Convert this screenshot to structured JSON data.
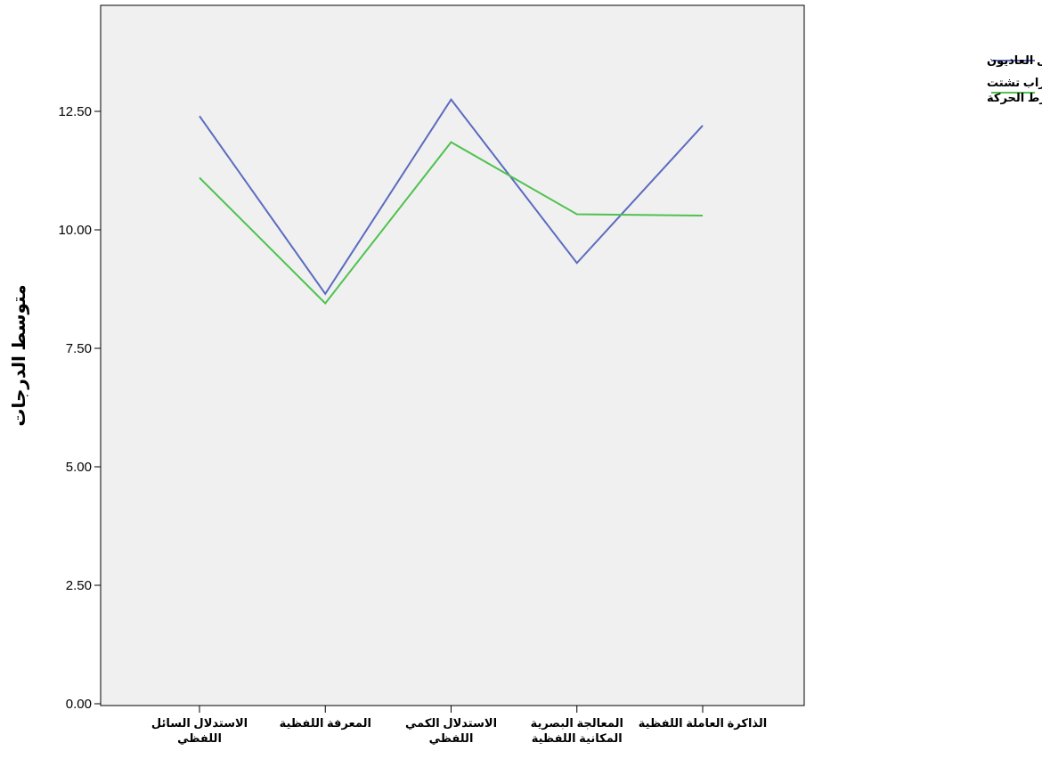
{
  "chart_data": {
    "type": "line",
    "title": "",
    "xlabel": "",
    "ylabel": "متوسط الدرجات",
    "categories": [
      [
        "الاستدلال السائل",
        "اللفظي"
      ],
      [
        "المعرفة اللفظية"
      ],
      [
        "الاستدلال الكمي",
        "اللفظي"
      ],
      [
        "المعالجة البصرية",
        "المكانية اللفظية"
      ],
      [
        "الذاكرة العاملة اللفظية"
      ]
    ],
    "series": [
      {
        "name": "الأطفال العاديون",
        "color": "#5b6bbf",
        "values": [
          12.4,
          8.65,
          12.75,
          9.3,
          12.2
        ]
      },
      {
        "name": "الأطفال ذوي اضطراب تشتت الانتباه وفرط الحركة",
        "color": "#4fc24f",
        "values": [
          11.1,
          8.45,
          11.85,
          10.33,
          10.3
        ]
      }
    ],
    "legend": {
      "position": "top-right",
      "entries": [
        [
          "الأطفال العاديون"
        ],
        [
          "الأطفال ذوي اضطراب تشتت",
          "الانتباه وفرط الحركة"
        ]
      ]
    },
    "yticks": [
      "0.00",
      "2.50",
      "5.00",
      "7.50",
      "10.00",
      "12.50"
    ],
    "ylim": [
      0,
      15
    ],
    "grid": false
  }
}
